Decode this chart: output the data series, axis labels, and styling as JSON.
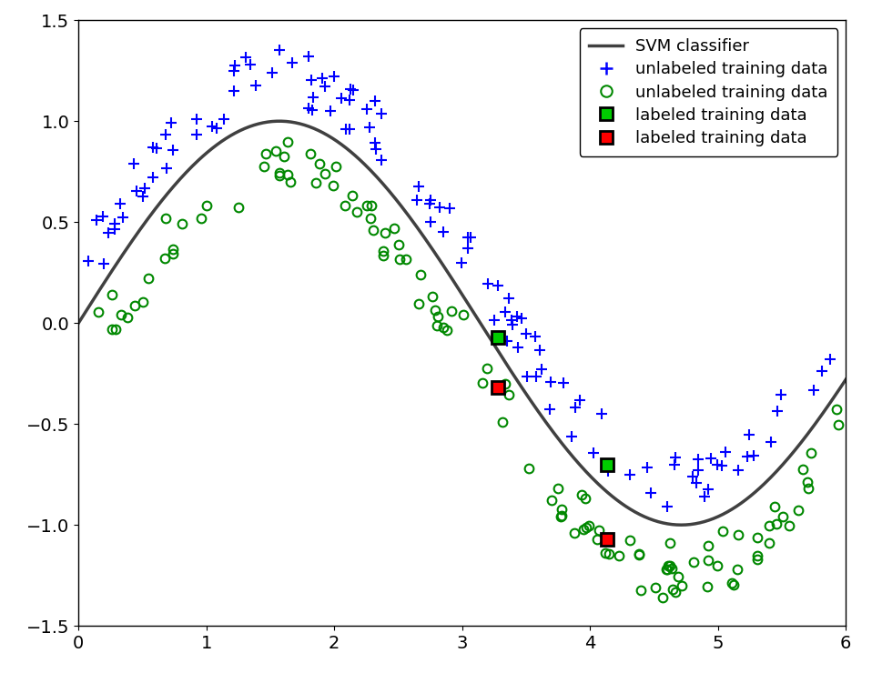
{
  "title": "",
  "xlim": [
    0,
    6
  ],
  "ylim": [
    -1.5,
    1.5
  ],
  "xticks": [
    0,
    1,
    2,
    3,
    4,
    5,
    6
  ],
  "yticks": [
    -1.5,
    -1.0,
    -0.5,
    0,
    0.5,
    1.0,
    1.5
  ],
  "curve_color": "#404040",
  "curve_linewidth": 2.5,
  "plus_color": "#0000FF",
  "circle_color": "#008800",
  "labeled_green_1": [
    3.28,
    -0.07
  ],
  "labeled_red_1": [
    3.28,
    -0.32
  ],
  "labeled_green_2": [
    4.13,
    -0.7
  ],
  "labeled_red_2": [
    4.13,
    -1.07
  ],
  "legend_labels": [
    "SVM classifier",
    "unlabeled training data",
    "unlabeled training data",
    "labeled training data",
    "labeled training data"
  ],
  "background_color": "#FFFFFF",
  "figsize": [
    9.58,
    7.4
  ],
  "dpi": 100
}
